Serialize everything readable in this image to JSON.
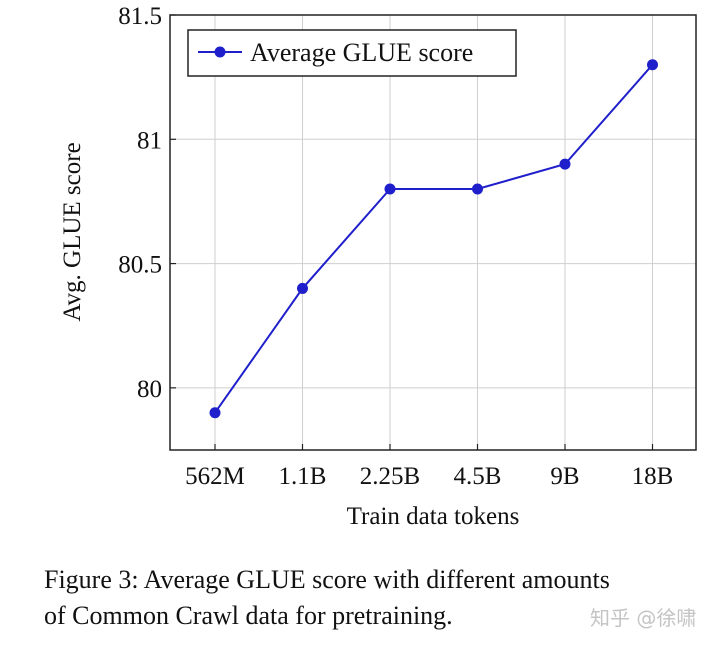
{
  "chart_data": {
    "type": "line",
    "categories": [
      "562M",
      "1.1B",
      "2.25B",
      "4.5B",
      "9B",
      "18B"
    ],
    "series": [
      {
        "name": "Average GLUE score",
        "values": [
          79.9,
          80.4,
          80.8,
          80.8,
          80.9,
          81.3
        ],
        "color": "#1f1fcc"
      }
    ],
    "xlabel": "Train data tokens",
    "ylabel": "Avg. GLUE score",
    "ylim": [
      79.75,
      81.5
    ],
    "yticks": [
      80,
      80.5,
      81,
      81.5
    ],
    "ytick_labels": [
      "80",
      "80.5",
      "81",
      "81.5"
    ],
    "grid": true,
    "legend": "top-left"
  },
  "caption": {
    "line1": "Figure 3: Average GLUE score with different amounts",
    "line2": "of Common Crawl data for pretraining."
  },
  "watermark": "知乎 @徐啸"
}
